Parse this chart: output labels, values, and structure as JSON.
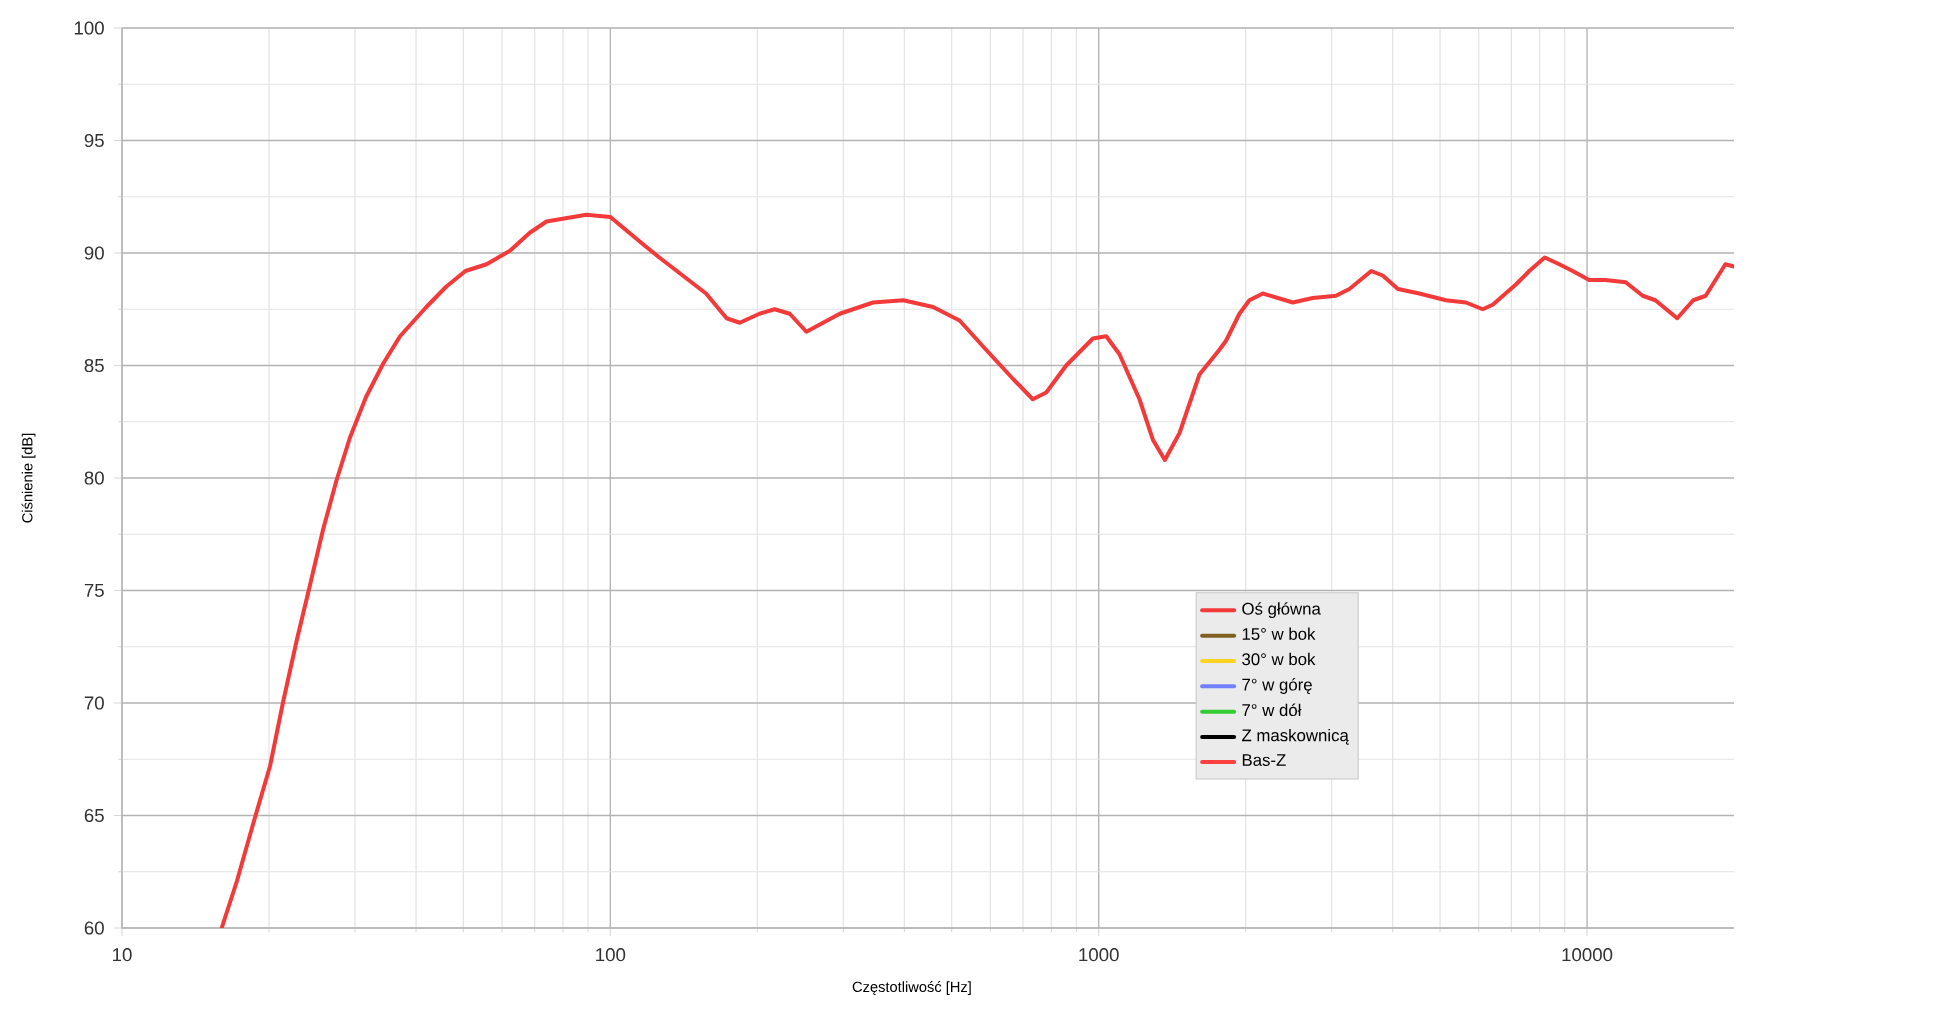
{
  "chart_data": {
    "type": "line",
    "xlabel": "Częstotliwość [Hz]",
    "ylabel": "Ciśnienie [dB]",
    "xlim": [
      10,
      20000
    ],
    "ylim": [
      60,
      100
    ],
    "log": "x",
    "grid": true,
    "legend": "bottom right",
    "xticks": [
      10,
      {
        "value": 20,
        "label": null
      },
      {
        "value": 30,
        "label": null
      },
      {
        "value": 40,
        "label": null
      },
      {
        "value": 50,
        "label": null
      },
      {
        "value": 60,
        "label": null
      },
      {
        "value": 70,
        "label": null
      },
      {
        "value": 80,
        "label": null
      },
      {
        "value": 90,
        "label": null
      },
      100,
      {
        "value": 200,
        "label": null
      },
      {
        "value": 300,
        "label": null
      },
      {
        "value": 400,
        "label": null
      },
      {
        "value": 500,
        "label": null
      },
      {
        "value": 600,
        "label": null
      },
      {
        "value": 700,
        "label": null
      },
      {
        "value": 800,
        "label": null
      },
      {
        "value": 900,
        "label": null
      },
      1000,
      {
        "value": 2000,
        "label": null
      },
      {
        "value": 3000,
        "label": null
      },
      {
        "value": 4000,
        "label": null
      },
      {
        "value": 5000,
        "label": null
      },
      {
        "value": 6000,
        "label": null
      },
      {
        "value": 7000,
        "label": null
      },
      {
        "value": 8000,
        "label": null
      },
      {
        "value": 9000,
        "label": null
      },
      10000
    ],
    "yticks": [
      60,
      {
        "value": 62.5,
        "label": null
      },
      65,
      {
        "value": 67.5,
        "label": null
      },
      70,
      {
        "value": 72.5,
        "label": null
      },
      75,
      {
        "value": 77.5,
        "label": null
      },
      80,
      {
        "value": 82.5,
        "label": null
      },
      85,
      {
        "value": 87.5,
        "label": null
      },
      90,
      {
        "value": 92.5,
        "label": null
      },
      95,
      {
        "value": 97.5,
        "label": null
      },
      100
    ],
    "series": [
      {
        "name": "Oś główna",
        "color": "#f23a3a",
        "x": [
          16,
          17.2,
          18.6,
          20.1,
          21.4,
          22.8,
          24.3,
          25.8,
          27.5,
          29.3,
          31.6,
          34.3,
          37.1,
          42,
          46.1,
          50.5,
          55.8,
          62.3,
          68.4,
          74,
          89.3,
          100,
          118,
          126,
          157,
          173,
          184,
          202,
          217,
          233,
          252,
          295,
          345,
          398,
          458,
          519,
          588,
          668,
          733,
          781,
          858,
          973,
          1036,
          1103,
          1212,
          1291,
          1366,
          1464,
          1608,
          1767,
          1823,
          1942,
          2035,
          2168,
          2497,
          2744,
          3061,
          3261,
          3616,
          3816,
          4100,
          4535,
          5140,
          5649,
          6114,
          6409,
          7150,
          7617,
          8190,
          8773,
          9344,
          10100,
          10900,
          12000,
          13000,
          13800,
          15300,
          16500,
          17500,
          19200,
          20000
        ],
        "values": [
          60.0,
          62.1,
          64.7,
          67.2,
          70.1,
          72.8,
          75.3,
          77.7,
          79.9,
          81.8,
          83.6,
          85.1,
          86.3,
          87.6,
          88.5,
          89.2,
          89.5,
          90.1,
          90.9,
          91.4,
          91.7,
          91.6,
          90.3,
          89.8,
          88.2,
          87.1,
          86.9,
          87.3,
          87.5,
          87.3,
          86.5,
          87.3,
          87.8,
          87.9,
          87.6,
          87.0,
          85.7,
          84.4,
          83.5,
          83.8,
          85.0,
          86.2,
          86.3,
          85.5,
          83.5,
          81.7,
          80.8,
          82.0,
          84.6,
          85.7,
          86.1,
          87.3,
          87.9,
          88.2,
          87.8,
          88.0,
          88.1,
          88.4,
          89.2,
          89.0,
          88.4,
          88.2,
          87.9,
          87.8,
          87.5,
          87.7,
          88.6,
          89.2,
          89.8,
          89.5,
          89.2,
          88.8,
          88.8,
          88.7,
          88.1,
          87.9,
          87.1,
          87.9,
          88.1,
          89.5,
          89.4
        ]
      },
      {
        "name": "15° w bok",
        "color": "#806020"
      },
      {
        "name": "30° w bok",
        "color": "#ffd320"
      },
      {
        "name": "7° w górę",
        "color": "#7080ff"
      },
      {
        "name": "7° w dół",
        "color": "#33cc33"
      },
      {
        "name": "Z maskownicą",
        "color": "#000000"
      },
      {
        "name": "Bas-Z",
        "color": "#ff4040"
      }
    ]
  }
}
